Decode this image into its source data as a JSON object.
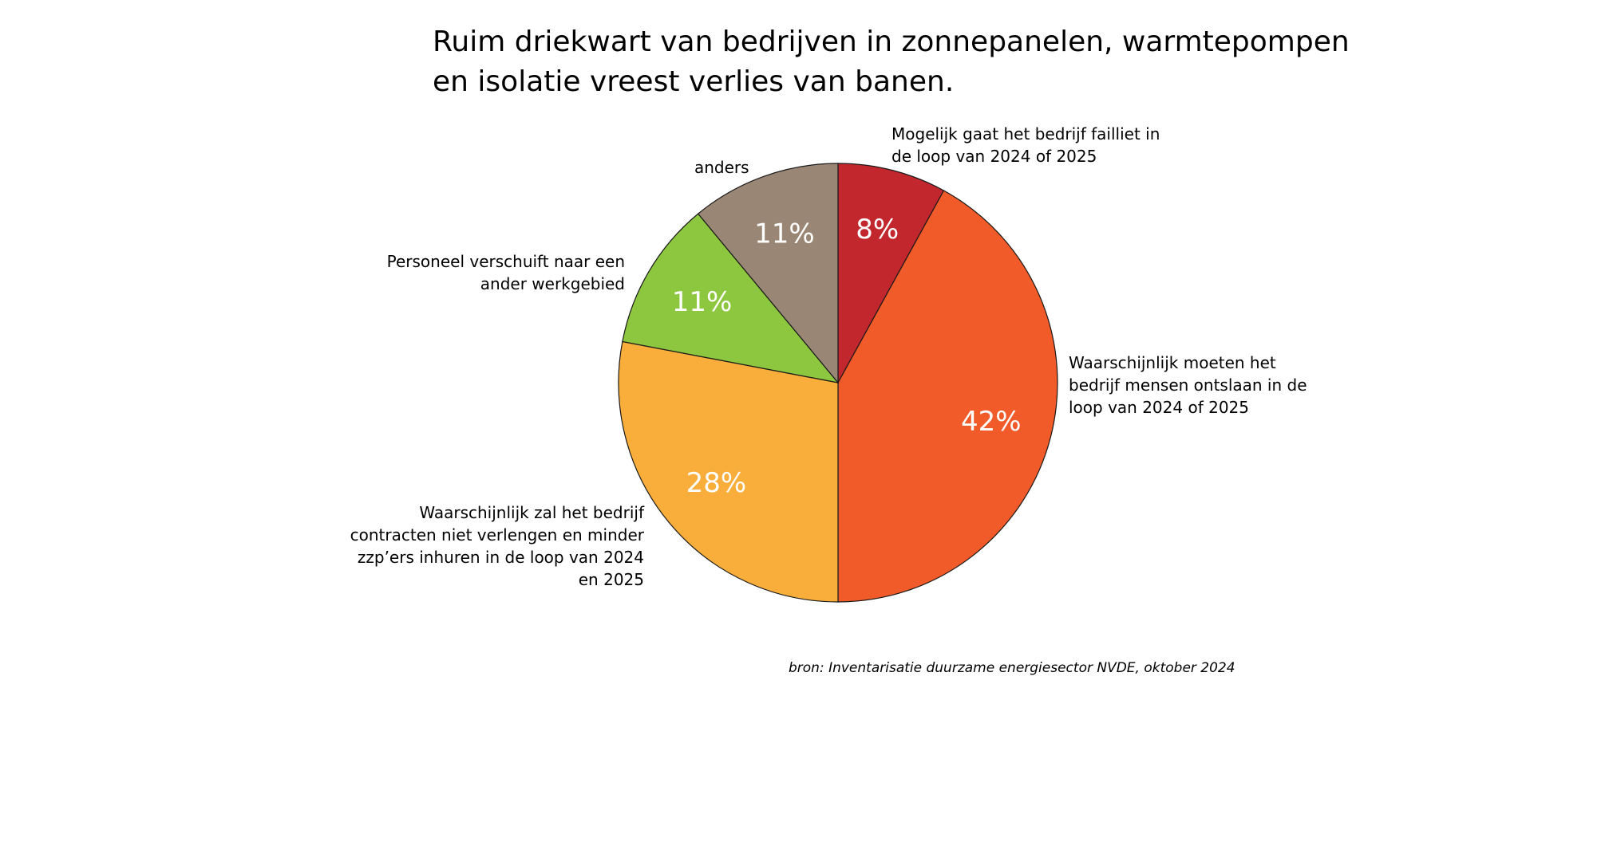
{
  "chart_data": {
    "type": "pie",
    "title_lines": [
      "Ruim driekwart van bedrijven in zonnepanelen, warmtepompen",
      "en isolatie vreest verlies van banen."
    ],
    "slices": [
      {
        "label_lines": [
          "Mogelijk gaat het bedrijf failliet in",
          "de loop van 2024 of 2025"
        ],
        "value": 8,
        "display": "8%",
        "color": "#c1272d"
      },
      {
        "label_lines": [
          "Waarschijnlijk moeten het",
          "bedrijf mensen ontslaan in de",
          "loop van 2024 of 2025"
        ],
        "value": 42,
        "display": "42%",
        "color": "#f15a29"
      },
      {
        "label_lines": [
          "Waarschijnlijk zal het bedrijf",
          "contracten niet verlengen en minder",
          "zzp’ers inhuren in de loop van 2024",
          "en 2025"
        ],
        "value": 28,
        "display": "28%",
        "color": "#f9ae3b"
      },
      {
        "label_lines": [
          "Personeel verschuift naar een",
          "ander werkgebied"
        ],
        "value": 11,
        "display": "11%",
        "color": "#8dc63f"
      },
      {
        "label_lines": [
          "anders"
        ],
        "value": 11,
        "display": "11%",
        "color": "#998675"
      }
    ],
    "start_angle": "12 o'clock",
    "direction": "clockwise",
    "source": "bron: Inventarisatie duurzame energiesector NVDE, oktober 2024"
  }
}
